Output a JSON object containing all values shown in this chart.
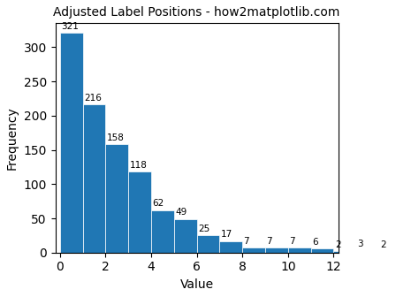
{
  "title": "Adjusted Label Positions - how2matplotlib.com",
  "xlabel": "Value",
  "ylabel": "Frequency",
  "bar_color": "#2077b4",
  "bar_counts": [
    321,
    216,
    158,
    118,
    62,
    49,
    25,
    17,
    7,
    7,
    7,
    6,
    2,
    3,
    2
  ],
  "bin_edges": [
    0,
    1,
    2,
    3,
    4,
    5,
    6,
    7,
    8,
    9,
    10,
    11,
    12,
    13,
    14,
    15
  ],
  "xlim": [
    -0.2,
    12.2
  ],
  "ylim": [
    0,
    335
  ],
  "xticks": [
    0,
    2,
    4,
    6,
    8,
    10,
    12
  ],
  "title_fontsize": 10,
  "axis_label_fontsize": 10
}
